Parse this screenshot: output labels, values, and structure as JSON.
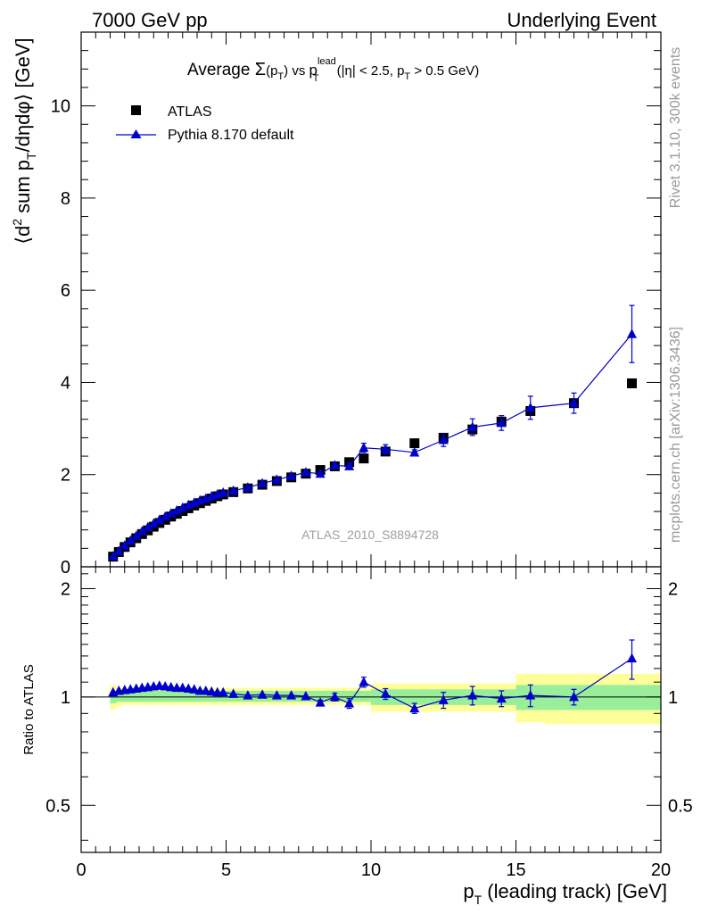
{
  "header": {
    "left": "7000 GeV pp",
    "right": "Underlying Event"
  },
  "side_labels": {
    "rivet": "Rivet 3.1.10,  300k events",
    "mcplots": "mcplots.cern.ch [arXiv:1306.3436]"
  },
  "chart_data": [
    {
      "type": "scatter",
      "title": "Average Σ(pT) vs pT lead (|η| < 2.5, pT > 0.5 GeV)",
      "title_parts": {
        "pre": "Average ",
        "sigma": "Σ",
        "pt": "(p",
        "t": "T",
        "close": ")",
        "vs": " vs ",
        "p2": "p",
        "sup": "lead",
        "sub2": "T",
        "cut1": " (|η| < 2.5, p",
        "sub3": "T",
        "cut2": " > 0.5 GeV)"
      },
      "ylabel": "⟨d² sum pT/dηdφ⟩ [GeV]",
      "ylabel_parts": {
        "a": "⟨d",
        "sup": "2",
        "b": " sum p",
        "sub": "T",
        "c": "/dηdφ⟩ [GeV]"
      },
      "xlim": [
        0,
        20
      ],
      "ylim": [
        0,
        11.6
      ],
      "yticks": [
        0,
        2,
        4,
        6,
        8,
        10
      ],
      "watermark": "ATLAS_2010_S8894728",
      "legend_position": "top-left",
      "series": [
        {
          "name": "ATLAS",
          "marker": "square",
          "color": "#000000",
          "x": [
            1.1,
            1.3,
            1.5,
            1.7,
            1.9,
            2.1,
            2.3,
            2.5,
            2.7,
            2.9,
            3.1,
            3.3,
            3.5,
            3.7,
            3.9,
            4.1,
            4.3,
            4.5,
            4.7,
            4.9,
            5.25,
            5.75,
            6.25,
            6.75,
            7.25,
            7.75,
            8.25,
            8.75,
            9.25,
            9.75,
            10.5,
            11.5,
            12.5,
            13.5,
            14.5,
            15.5,
            17.0,
            19.0
          ],
          "y": [
            0.22,
            0.32,
            0.43,
            0.53,
            0.62,
            0.71,
            0.79,
            0.87,
            0.95,
            1.02,
            1.09,
            1.15,
            1.21,
            1.27,
            1.33,
            1.38,
            1.43,
            1.48,
            1.53,
            1.57,
            1.62,
            1.7,
            1.78,
            1.86,
            1.94,
            2.02,
            2.1,
            2.18,
            2.27,
            2.35,
            2.5,
            2.68,
            2.8,
            2.98,
            3.15,
            3.38,
            3.55,
            3.98
          ]
        },
        {
          "name": "Pythia 8.170 default",
          "marker": "triangle",
          "color": "#0000cc",
          "x": [
            1.1,
            1.3,
            1.5,
            1.7,
            1.9,
            2.1,
            2.3,
            2.5,
            2.7,
            2.9,
            3.1,
            3.3,
            3.5,
            3.7,
            3.9,
            4.1,
            4.3,
            4.5,
            4.7,
            4.9,
            5.25,
            5.75,
            6.25,
            6.75,
            7.25,
            7.75,
            8.25,
            8.75,
            9.25,
            9.75,
            10.5,
            11.5,
            12.5,
            13.5,
            14.5,
            15.5,
            17.0,
            19.0
          ],
          "y": [
            0.23,
            0.34,
            0.46,
            0.57,
            0.67,
            0.77,
            0.86,
            0.94,
            1.02,
            1.09,
            1.16,
            1.22,
            1.28,
            1.34,
            1.39,
            1.44,
            1.48,
            1.53,
            1.57,
            1.61,
            1.65,
            1.72,
            1.81,
            1.89,
            1.97,
            2.05,
            2.02,
            2.2,
            2.18,
            2.58,
            2.55,
            2.48,
            2.75,
            3.03,
            3.12,
            3.45,
            3.55,
            5.05
          ],
          "yerr": [
            0,
            0,
            0,
            0,
            0,
            0,
            0,
            0,
            0,
            0,
            0,
            0,
            0,
            0,
            0,
            0,
            0,
            0,
            0,
            0,
            0,
            0,
            0,
            0,
            0,
            0,
            0,
            0.03,
            0.07,
            0.1,
            0.1,
            0.06,
            0.14,
            0.18,
            0.16,
            0.25,
            0.22,
            0.62
          ]
        }
      ]
    },
    {
      "type": "scatter",
      "ylabel": "Ratio to ATLAS",
      "xlabel": "pT (leading track) [GeV]",
      "xlabel_parts": {
        "a": "p",
        "sub": "T",
        "b": " (leading track) [GeV]"
      },
      "xlim": [
        0,
        20
      ],
      "xticks": [
        0,
        5,
        10,
        15,
        20
      ],
      "ylim": [
        0.37,
        2.3
      ],
      "yticks": [
        0.5,
        1,
        2
      ],
      "log_y": true,
      "bands": {
        "edges": [
          1.0,
          1.2,
          1.4,
          1.6,
          1.8,
          2.0,
          2.2,
          2.4,
          2.6,
          2.8,
          3.0,
          3.2,
          3.4,
          3.6,
          3.8,
          4.0,
          4.2,
          4.4,
          4.6,
          4.8,
          5.0,
          5.5,
          6.0,
          6.5,
          7.0,
          7.5,
          8.0,
          8.5,
          9.0,
          9.5,
          10.0,
          11.0,
          12.0,
          13.0,
          14.0,
          15.0,
          16.0,
          18.0,
          20.0
        ],
        "yellow_lo": [
          0.92,
          0.94,
          0.95,
          0.95,
          0.95,
          0.95,
          0.95,
          0.95,
          0.95,
          0.95,
          0.95,
          0.95,
          0.95,
          0.95,
          0.95,
          0.95,
          0.95,
          0.95,
          0.95,
          0.95,
          0.95,
          0.95,
          0.95,
          0.95,
          0.95,
          0.95,
          0.95,
          0.95,
          0.95,
          0.95,
          0.91,
          0.91,
          0.91,
          0.91,
          0.91,
          0.85,
          0.84,
          0.84
        ],
        "yellow_hi": [
          1.08,
          1.06,
          1.06,
          1.06,
          1.06,
          1.06,
          1.06,
          1.06,
          1.06,
          1.06,
          1.06,
          1.06,
          1.06,
          1.06,
          1.06,
          1.06,
          1.06,
          1.06,
          1.06,
          1.06,
          1.06,
          1.06,
          1.06,
          1.06,
          1.06,
          1.06,
          1.06,
          1.06,
          1.06,
          1.06,
          1.09,
          1.09,
          1.09,
          1.09,
          1.09,
          1.16,
          1.16,
          1.16
        ],
        "green_lo": [
          0.96,
          0.97,
          0.97,
          0.97,
          0.97,
          0.97,
          0.97,
          0.97,
          0.97,
          0.97,
          0.97,
          0.97,
          0.97,
          0.97,
          0.97,
          0.97,
          0.97,
          0.97,
          0.97,
          0.97,
          0.97,
          0.97,
          0.97,
          0.97,
          0.97,
          0.97,
          0.97,
          0.97,
          0.97,
          0.97,
          0.95,
          0.95,
          0.95,
          0.95,
          0.95,
          0.92,
          0.92,
          0.92
        ],
        "green_hi": [
          1.04,
          1.04,
          1.04,
          1.04,
          1.04,
          1.04,
          1.04,
          1.04,
          1.04,
          1.04,
          1.04,
          1.04,
          1.04,
          1.04,
          1.04,
          1.04,
          1.04,
          1.04,
          1.04,
          1.04,
          1.04,
          1.04,
          1.04,
          1.04,
          1.04,
          1.04,
          1.04,
          1.04,
          1.04,
          1.04,
          1.05,
          1.05,
          1.05,
          1.05,
          1.05,
          1.08,
          1.08,
          1.08
        ]
      },
      "series": [
        {
          "name": "Pythia 8.170 default",
          "marker": "triangle",
          "color": "#0000cc",
          "x": [
            1.1,
            1.3,
            1.5,
            1.7,
            1.9,
            2.1,
            2.3,
            2.5,
            2.7,
            2.9,
            3.1,
            3.3,
            3.5,
            3.7,
            3.9,
            4.1,
            4.3,
            4.5,
            4.7,
            4.9,
            5.25,
            5.75,
            6.25,
            6.75,
            7.25,
            7.75,
            8.25,
            8.75,
            9.25,
            9.75,
            10.5,
            11.5,
            12.5,
            13.5,
            14.5,
            15.5,
            17.0,
            19.0
          ],
          "y": [
            1.03,
            1.04,
            1.045,
            1.05,
            1.055,
            1.06,
            1.065,
            1.07,
            1.075,
            1.07,
            1.065,
            1.06,
            1.06,
            1.055,
            1.05,
            1.04,
            1.04,
            1.035,
            1.03,
            1.03,
            1.02,
            1.01,
            1.015,
            1.01,
            1.01,
            1.005,
            0.965,
            1.0,
            0.96,
            1.1,
            1.02,
            0.93,
            0.98,
            1.01,
            0.99,
            1.01,
            1.0,
            1.28
          ],
          "yerr": [
            0,
            0,
            0,
            0,
            0,
            0,
            0,
            0,
            0,
            0,
            0,
            0,
            0,
            0,
            0,
            0,
            0,
            0,
            0,
            0,
            0,
            0,
            0,
            0,
            0,
            0,
            0.015,
            0.025,
            0.03,
            0.035,
            0.035,
            0.03,
            0.05,
            0.06,
            0.05,
            0.07,
            0.05,
            0.16
          ]
        }
      ]
    }
  ]
}
